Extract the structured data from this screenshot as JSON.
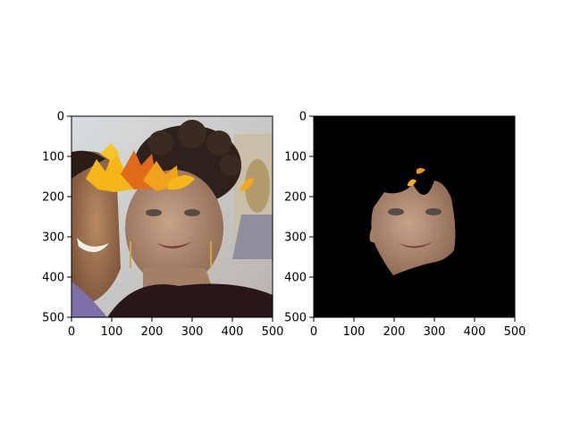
{
  "chart_data": [
    {
      "type": "image",
      "content": "photo with autumn leaf overlay",
      "xlim": [
        0,
        500
      ],
      "ylim": [
        500,
        0
      ],
      "xticks": [
        0,
        100,
        200,
        300,
        400,
        500
      ],
      "yticks": [
        0,
        100,
        200,
        300,
        400,
        500
      ],
      "xtick_labels": [
        "0",
        "100",
        "200",
        "300",
        "400",
        "500"
      ],
      "ytick_labels": [
        "0",
        "100",
        "200",
        "300",
        "400",
        "500"
      ],
      "title": "",
      "xlabel": "",
      "ylabel": ""
    },
    {
      "type": "image",
      "content": "face segmentation mask on black background",
      "xlim": [
        0,
        500
      ],
      "ylim": [
        500,
        0
      ],
      "xticks": [
        0,
        100,
        200,
        300,
        400,
        500
      ],
      "yticks": [
        0,
        100,
        200,
        300,
        400,
        500
      ],
      "xtick_labels": [
        "0",
        "100",
        "200",
        "300",
        "400",
        "500"
      ],
      "ytick_labels": [
        "0",
        "100",
        "200",
        "300",
        "400",
        "500"
      ],
      "title": "",
      "xlabel": "",
      "ylabel": ""
    }
  ]
}
